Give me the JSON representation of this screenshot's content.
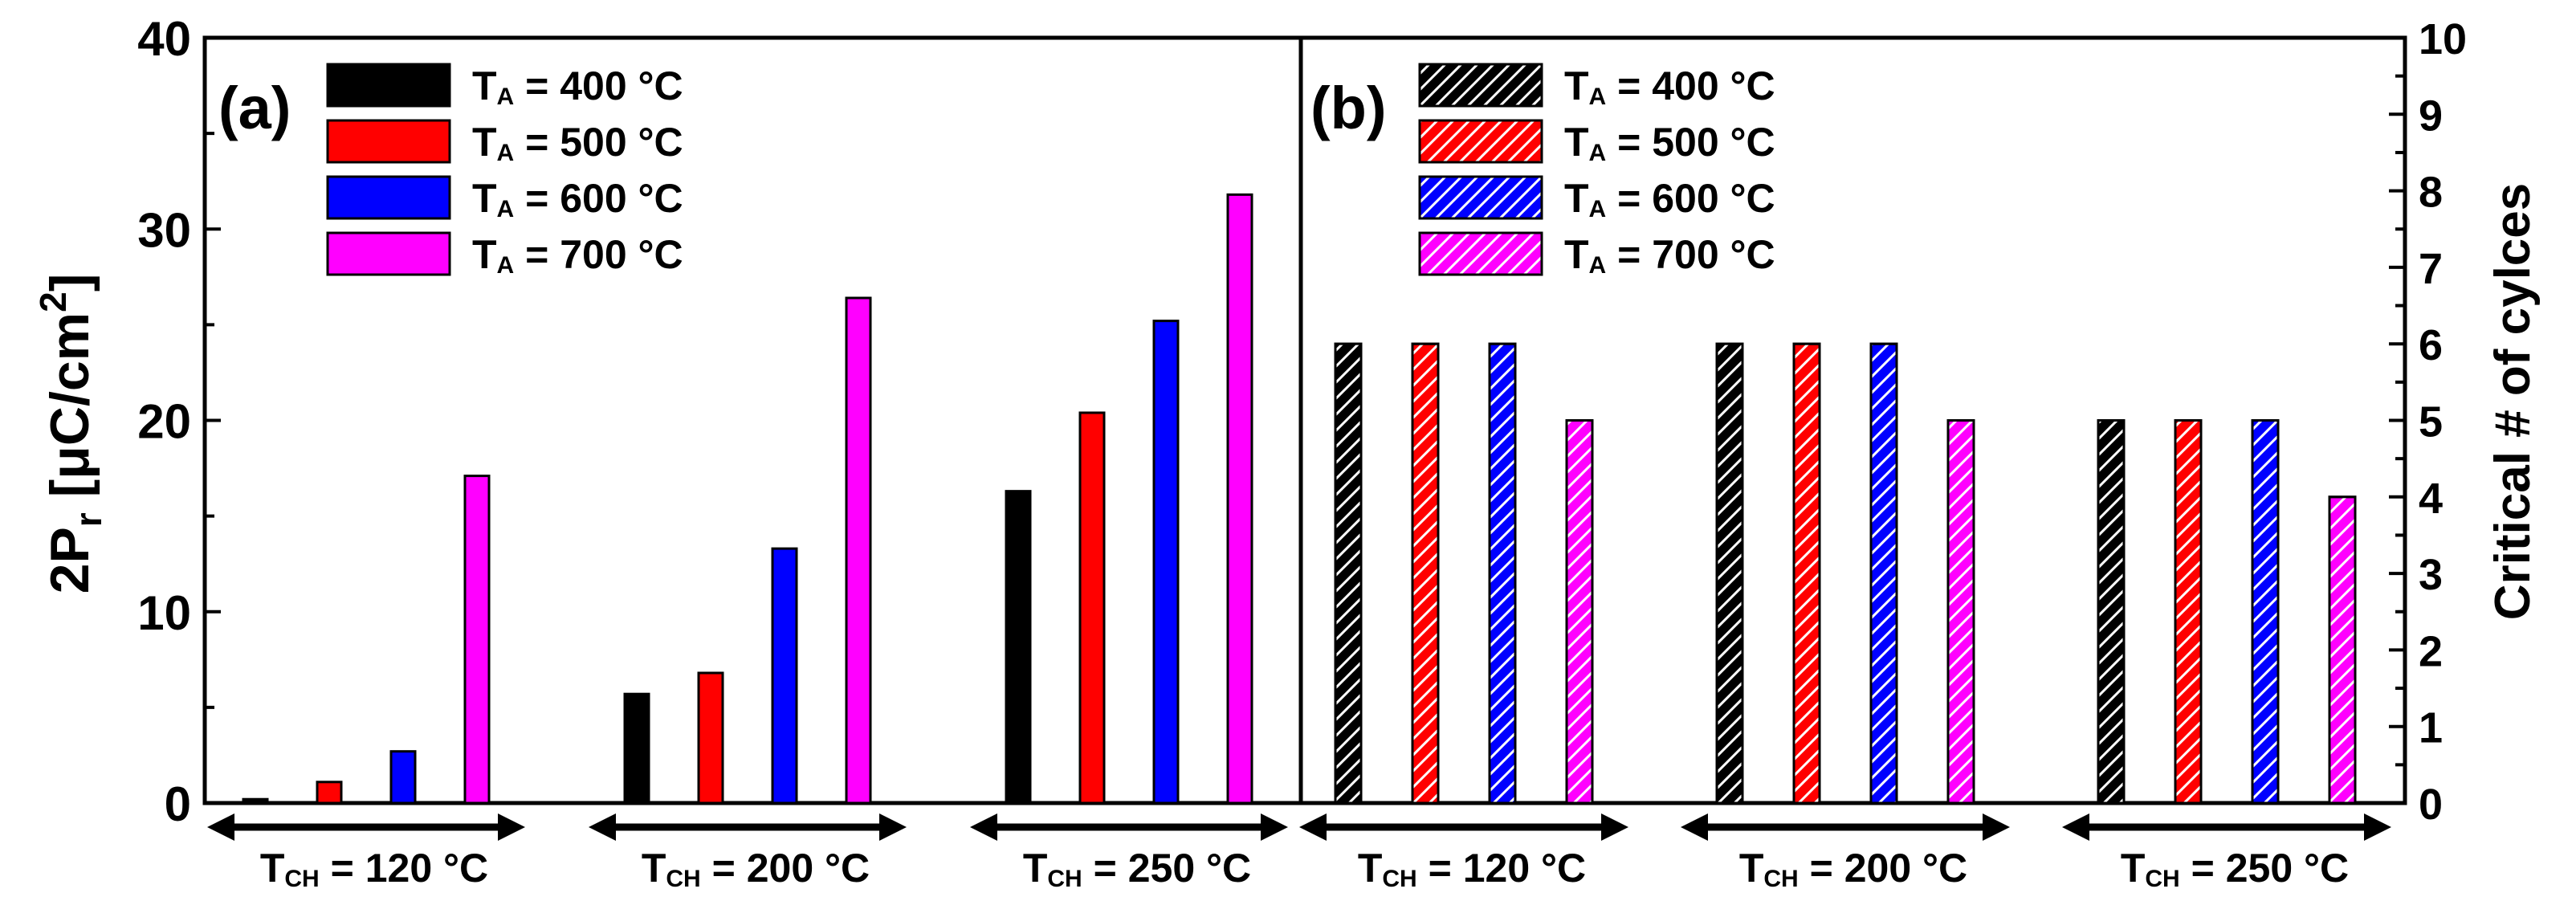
{
  "figure": {
    "y_left_label": "2P",
    "y_left_label_sub": "r",
    "y_left_label_rest": " [μC/cm",
    "y_left_label_sup": "2",
    "y_left_label_end": "]",
    "y_right_label": "Critical # of cylces"
  },
  "colors": {
    "T_A = 400 °C": "#000000",
    "T_A = 500 °C": "#ff0000",
    "T_A = 600 °C": "#0000ff",
    "T_A = 700 °C": "#ff00ff"
  },
  "chart_data": [
    {
      "type": "bar",
      "panel_label": "(a)",
      "ylabel": "2Pr [μC/cm2]",
      "ylim": [
        0,
        40
      ],
      "yticks": [
        "0",
        "10",
        "20",
        "30",
        "40"
      ],
      "hatched": false,
      "groups": [
        {
          "prefix": "T",
          "sub": "CH",
          "suffix": " = 120 °C"
        },
        {
          "prefix": "T",
          "sub": "CH",
          "suffix": " = 200 °C"
        },
        {
          "prefix": "T",
          "sub": "CH",
          "suffix": " = 250 °C"
        }
      ],
      "legend_position": "top-left",
      "series": [
        {
          "name": "T_A = 400 °C",
          "legend_prefix": "T",
          "legend_sub": "A",
          "legend_suffix": " = 400 °C",
          "color": "#000000",
          "values": [
            0.2,
            5.7,
            16.3
          ]
        },
        {
          "name": "T_A = 500 °C",
          "legend_prefix": "T",
          "legend_sub": "A",
          "legend_suffix": " = 500 °C",
          "color": "#ff0000",
          "values": [
            1.1,
            6.8,
            20.4
          ]
        },
        {
          "name": "T_A = 600 °C",
          "legend_prefix": "T",
          "legend_sub": "A",
          "legend_suffix": " = 600 °C",
          "color": "#0000ff",
          "values": [
            2.7,
            13.3,
            25.2
          ]
        },
        {
          "name": "T_A = 700 °C",
          "legend_prefix": "T",
          "legend_sub": "A",
          "legend_suffix": " = 700 °C",
          "color": "#ff00ff",
          "values": [
            17.1,
            26.4,
            31.8
          ]
        }
      ]
    },
    {
      "type": "bar",
      "panel_label": "(b)",
      "ylabel": "Critical # of cylces",
      "ylim": [
        0,
        10
      ],
      "yticks": [
        "0",
        "1",
        "2",
        "3",
        "4",
        "5",
        "6",
        "7",
        "8",
        "9",
        "10"
      ],
      "hatched": true,
      "groups": [
        {
          "prefix": "T",
          "sub": "CH",
          "suffix": " = 120 °C"
        },
        {
          "prefix": "T",
          "sub": "CH",
          "suffix": " = 200 °C"
        },
        {
          "prefix": "T",
          "sub": "CH",
          "suffix": " = 250 °C"
        }
      ],
      "legend_position": "top-left",
      "series": [
        {
          "name": "T_A = 400 °C",
          "legend_prefix": "T",
          "legend_sub": "A",
          "legend_suffix": " = 400 °C",
          "color": "#000000",
          "values": [
            6,
            6,
            5
          ]
        },
        {
          "name": "T_A = 500 °C",
          "legend_prefix": "T",
          "legend_sub": "A",
          "legend_suffix": " = 500 °C",
          "color": "#ff0000",
          "values": [
            6,
            6,
            5
          ]
        },
        {
          "name": "T_A = 600 °C",
          "legend_prefix": "T",
          "legend_sub": "A",
          "legend_suffix": " = 600 °C",
          "color": "#0000ff",
          "values": [
            6,
            6,
            5
          ]
        },
        {
          "name": "T_A = 700 °C",
          "legend_prefix": "T",
          "legend_sub": "A",
          "legend_suffix": " = 700 °C",
          "color": "#ff00ff",
          "values": [
            5,
            5,
            4
          ]
        }
      ]
    }
  ]
}
